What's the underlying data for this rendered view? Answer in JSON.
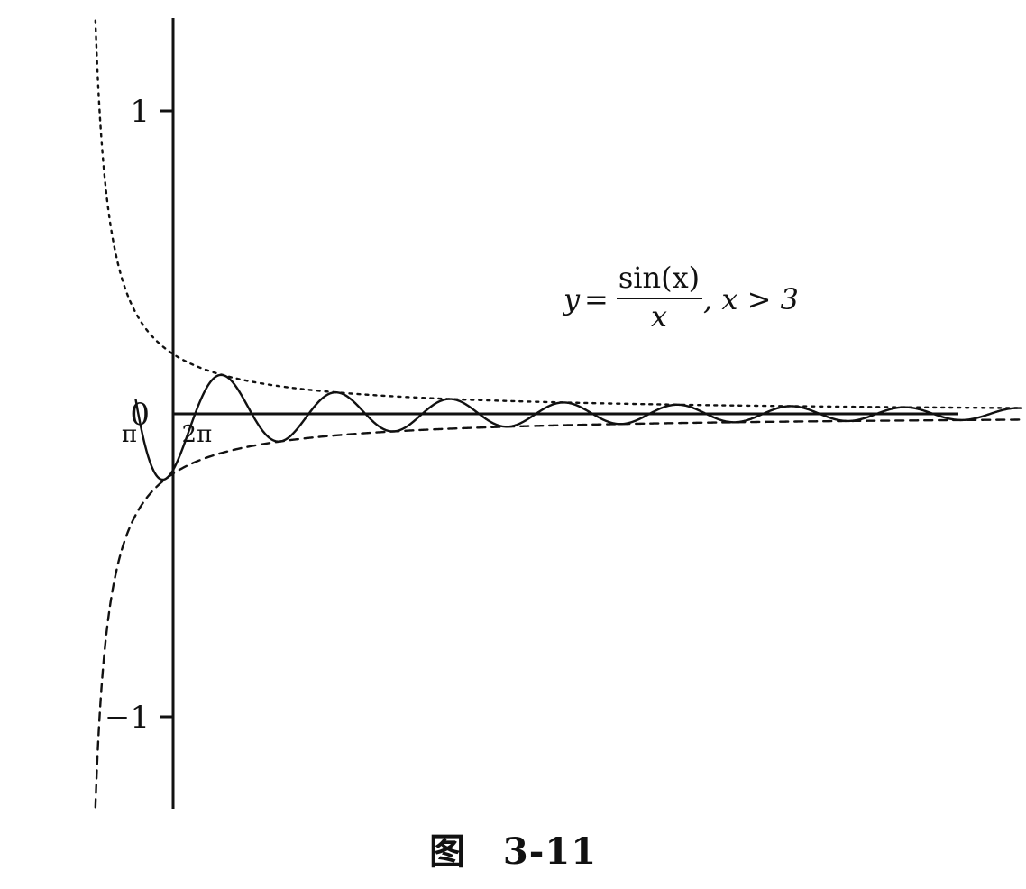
{
  "chart_data": {
    "type": "line",
    "title": "",
    "xlabel": "",
    "ylabel": "",
    "ylim": [
      -1.3,
      1.3
    ],
    "xlim": [
      0.5,
      52
    ],
    "x_ticks": [
      {
        "value": 3.14159,
        "label": "π"
      },
      {
        "value": 6.28318,
        "label": "2π"
      }
    ],
    "y_ticks": [
      {
        "value": 1,
        "label": "1"
      },
      {
        "value": 0,
        "label": "0"
      },
      {
        "value": -1,
        "label": "−1"
      }
    ],
    "series": [
      {
        "function": "sin(x)/x",
        "x_start": 3,
        "x_end": 52,
        "style": "solid"
      },
      {
        "function": "1/x",
        "x_start": 0.77,
        "x_end": 52,
        "style": "dotted"
      },
      {
        "function": "-1/x",
        "x_start": 0.77,
        "x_end": 52,
        "style": "dashed"
      }
    ],
    "annotation": {
      "lhs": "y",
      "eq": "=",
      "numerator": "sin(x)",
      "denominator": "x",
      "condition": ", x > 3"
    },
    "grid": false,
    "legend": "none"
  },
  "caption": "图　3-11",
  "colors": {
    "ink": "#111111",
    "background": "#ffffff"
  }
}
